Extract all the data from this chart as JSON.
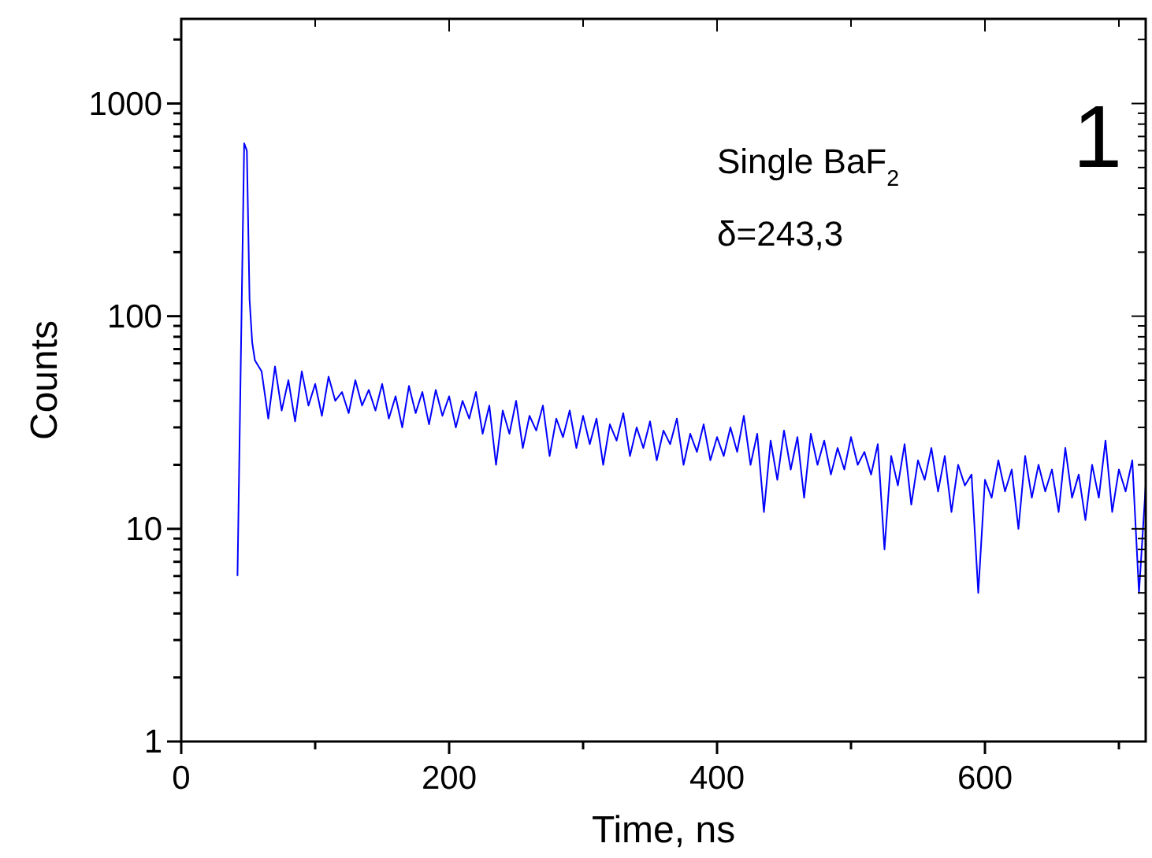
{
  "chart_data": {
    "type": "line",
    "xlabel": "Time, ns",
    "ylabel": "Counts",
    "log": "y",
    "grid": false,
    "line_style": "solid",
    "xlim": [
      0,
      720
    ],
    "ylim": [
      1,
      2500
    ],
    "xticks": [
      0,
      {
        "value": 100,
        "label": null
      },
      200,
      {
        "value": 300,
        "label": null
      },
      400,
      {
        "value": 500,
        "label": null
      },
      600,
      {
        "value": 700,
        "label": null
      }
    ],
    "yticks": [
      1,
      {
        "value": 2,
        "label": null
      },
      {
        "value": 3,
        "label": null
      },
      {
        "value": 4,
        "label": null
      },
      {
        "value": 5,
        "label": null
      },
      {
        "value": 6,
        "label": null
      },
      {
        "value": 7,
        "label": null
      },
      {
        "value": 8,
        "label": null
      },
      {
        "value": 9,
        "label": null
      },
      10,
      {
        "value": 20,
        "label": null
      },
      {
        "value": 30,
        "label": null
      },
      {
        "value": 40,
        "label": null
      },
      {
        "value": 50,
        "label": null
      },
      {
        "value": 60,
        "label": null
      },
      {
        "value": 70,
        "label": null
      },
      {
        "value": 80,
        "label": null
      },
      {
        "value": 90,
        "label": null
      },
      100,
      {
        "value": 200,
        "label": null
      },
      {
        "value": 300,
        "label": null
      },
      {
        "value": 400,
        "label": null
      },
      {
        "value": 500,
        "label": null
      },
      {
        "value": 600,
        "label": null
      },
      {
        "value": 700,
        "label": null
      },
      {
        "value": 800,
        "label": null
      },
      {
        "value": 900,
        "label": null
      },
      1000,
      {
        "value": 2000,
        "label": null
      }
    ],
    "annotations": [
      "Single BaF$_{2}$",
      "δ=243,3",
      "1"
    ],
    "series": [
      {
        "color": "#0000ff",
        "x": [
          42,
          45,
          47,
          49,
          51,
          53,
          55,
          60,
          65,
          70,
          75,
          80,
          85,
          90,
          95,
          100,
          105,
          110,
          115,
          120,
          125,
          130,
          135,
          140,
          145,
          150,
          155,
          160,
          165,
          170,
          175,
          180,
          185,
          190,
          195,
          200,
          205,
          210,
          215,
          220,
          225,
          230,
          235,
          240,
          245,
          250,
          255,
          260,
          265,
          270,
          275,
          280,
          285,
          290,
          295,
          300,
          305,
          310,
          315,
          320,
          325,
          330,
          335,
          340,
          345,
          350,
          355,
          360,
          365,
          370,
          375,
          380,
          385,
          390,
          395,
          400,
          405,
          410,
          415,
          420,
          425,
          430,
          435,
          440,
          445,
          450,
          455,
          460,
          465,
          470,
          475,
          480,
          485,
          490,
          495,
          500,
          505,
          510,
          515,
          520,
          525,
          530,
          535,
          540,
          545,
          550,
          555,
          560,
          565,
          570,
          575,
          580,
          585,
          590,
          595,
          600,
          605,
          610,
          615,
          620,
          625,
          630,
          635,
          640,
          645,
          650,
          655,
          660,
          665,
          670,
          675,
          680,
          685,
          690,
          695,
          700,
          705,
          710,
          715,
          720
        ],
        "values": [
          6,
          100,
          650,
          600,
          120,
          75,
          62,
          55,
          33,
          58,
          36,
          50,
          32,
          55,
          38,
          48,
          34,
          52,
          40,
          44,
          35,
          50,
          38,
          45,
          36,
          48,
          33,
          42,
          30,
          47,
          35,
          44,
          31,
          45,
          34,
          42,
          30,
          40,
          33,
          44,
          28,
          38,
          20,
          36,
          28,
          40,
          24,
          34,
          29,
          38,
          22,
          33,
          27,
          36,
          24,
          34,
          25,
          33,
          20,
          31,
          26,
          35,
          22,
          30,
          24,
          32,
          21,
          29,
          25,
          33,
          20,
          28,
          23,
          31,
          21,
          27,
          22,
          30,
          23,
          34,
          20,
          28,
          12,
          26,
          17,
          29,
          19,
          27,
          14,
          28,
          20,
          26,
          18,
          24,
          19,
          27,
          20,
          23,
          18,
          25,
          8,
          22,
          16,
          25,
          13,
          21,
          17,
          24,
          15,
          22,
          12,
          20,
          16,
          18,
          5,
          17,
          14,
          21,
          15,
          19,
          10,
          22,
          14,
          20,
          15,
          19,
          12,
          24,
          14,
          18,
          11,
          20,
          14,
          26,
          12,
          19,
          15,
          21,
          5,
          16
        ]
      }
    ]
  }
}
